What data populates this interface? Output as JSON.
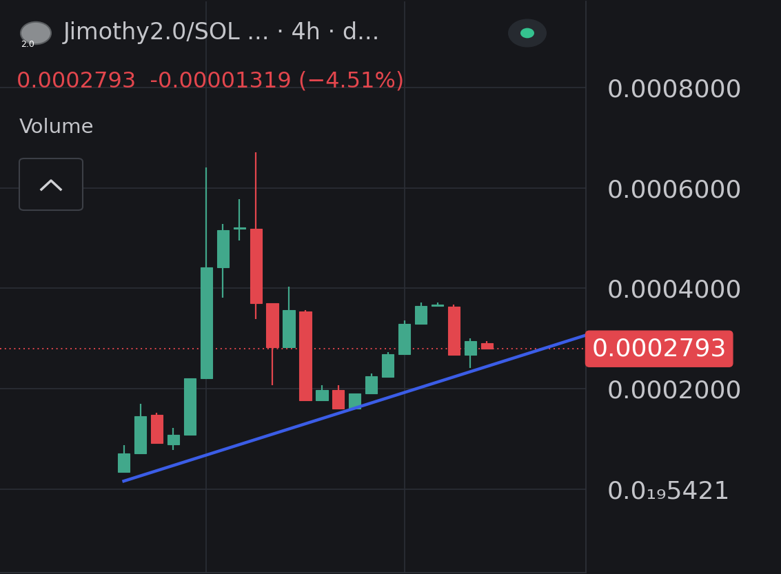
{
  "chart_data": {
    "type": "candlestick",
    "title": "Jimothy2.0/SOL ... · 4h · d...",
    "subtitle": "0.0002793  -0.00001319 (−4.51%)",
    "indicator_label": "Volume",
    "icon_text": "2.0",
    "x": [
      0,
      1,
      2,
      3,
      4,
      5,
      6,
      7,
      8,
      9,
      10,
      11,
      12,
      13,
      14,
      15,
      16,
      17,
      18,
      19,
      20,
      21,
      22
    ],
    "open": [
      3.34e-05,
      7.03e-05,
      0.0001481,
      8.81e-05,
      0.0001085,
      0.0002205,
      0.0004416,
      0.0005181,
      0.0005181,
      0.0003707,
      0.0002819,
      0.0003543,
      0.0001768,
      0.0001973,
      0.0001604,
      0.0001904,
      0.0002232,
      0.0002683,
      0.0003297,
      0.0003652,
      0.0003638,
      0.0002669,
      0.0002912
    ],
    "high": [
      8.67e-05,
      0.00017,
      0.0001522,
      0.0001222,
      0.0002205,
      0.000641,
      0.0005276,
      0.0005782,
      0.000671,
      0.0003707,
      0.0004034,
      0.000357,
      0.0002068,
      0.0002068,
      0.0001904,
      0.00023,
      0.0002724,
      0.0003365,
      0.000372,
      0.000372,
      0.0003679,
      0.0002997,
      0.0002942
    ],
    "low": [
      3.34e-05,
      7.03e-05,
      9.08e-05,
      7.71e-05,
      0.0001085,
      0.0002205,
      0.0003816,
      0.0004949,
      0.0003393,
      0.0002068,
      0.0002819,
      0.0001768,
      0.0001768,
      0.0001604,
      0.0001604,
      0.0001904,
      0.0002232,
      0.0002683,
      0.0003297,
      0.0003638,
      0.0002669,
      0.000241,
      0.000278
    ],
    "close": [
      7.03e-05,
      0.0001454,
      9.08e-05,
      0.0001085,
      0.0002205,
      0.0004416,
      0.0005154,
      0.0005208,
      0.0003707,
      0.0002819,
      0.000357,
      0.0001768,
      0.0001973,
      0.0001604,
      0.0001904,
      0.0002246,
      0.0002683,
      0.0003297,
      0.0003652,
      0.0003679,
      0.0002669,
      0.0002942,
      0.0002793
    ],
    "colors": [
      "#41a88b",
      "#41a88b",
      "#e3464d",
      "#41a88b",
      "#41a88b",
      "#41a88b",
      "#41a88b",
      "#41a88b",
      "#e3464d",
      "#e3464d",
      "#41a88b",
      "#e3464d",
      "#41a88b",
      "#e3464d",
      "#41a88b",
      "#41a88b",
      "#41a88b",
      "#41a88b",
      "#41a88b",
      "#41a88b",
      "#e3464d",
      "#41a88b",
      "#e3464d"
    ],
    "trendline": {
      "x": [
        0,
        28
      ],
      "values": [
        1.57e-05,
        0.0003065
      ],
      "color": "#3b5de7",
      "line_style": "solid"
    },
    "last_price": {
      "value": 0.0002793,
      "color": "#e3464d",
      "line_style": "dotted"
    },
    "xlim": [
      -7.5,
      28
    ],
    "xticks": [
      5,
      17
    ],
    "ylim": [
      -0.000166,
      0.000971
    ],
    "yticks": [
      {
        "value": 0.0008,
        "label": "0.0008000"
      },
      {
        "value": 0.0006,
        "label": "0.0006000"
      },
      {
        "value": 0.0004,
        "label": "0.0004000"
      },
      {
        "value": 0.0002,
        "label": "0.0002000"
      },
      {
        "value": 5.421e-20,
        "label": "0.0₁₉5421"
      }
    ],
    "grid": true,
    "tick_labels": "y"
  }
}
